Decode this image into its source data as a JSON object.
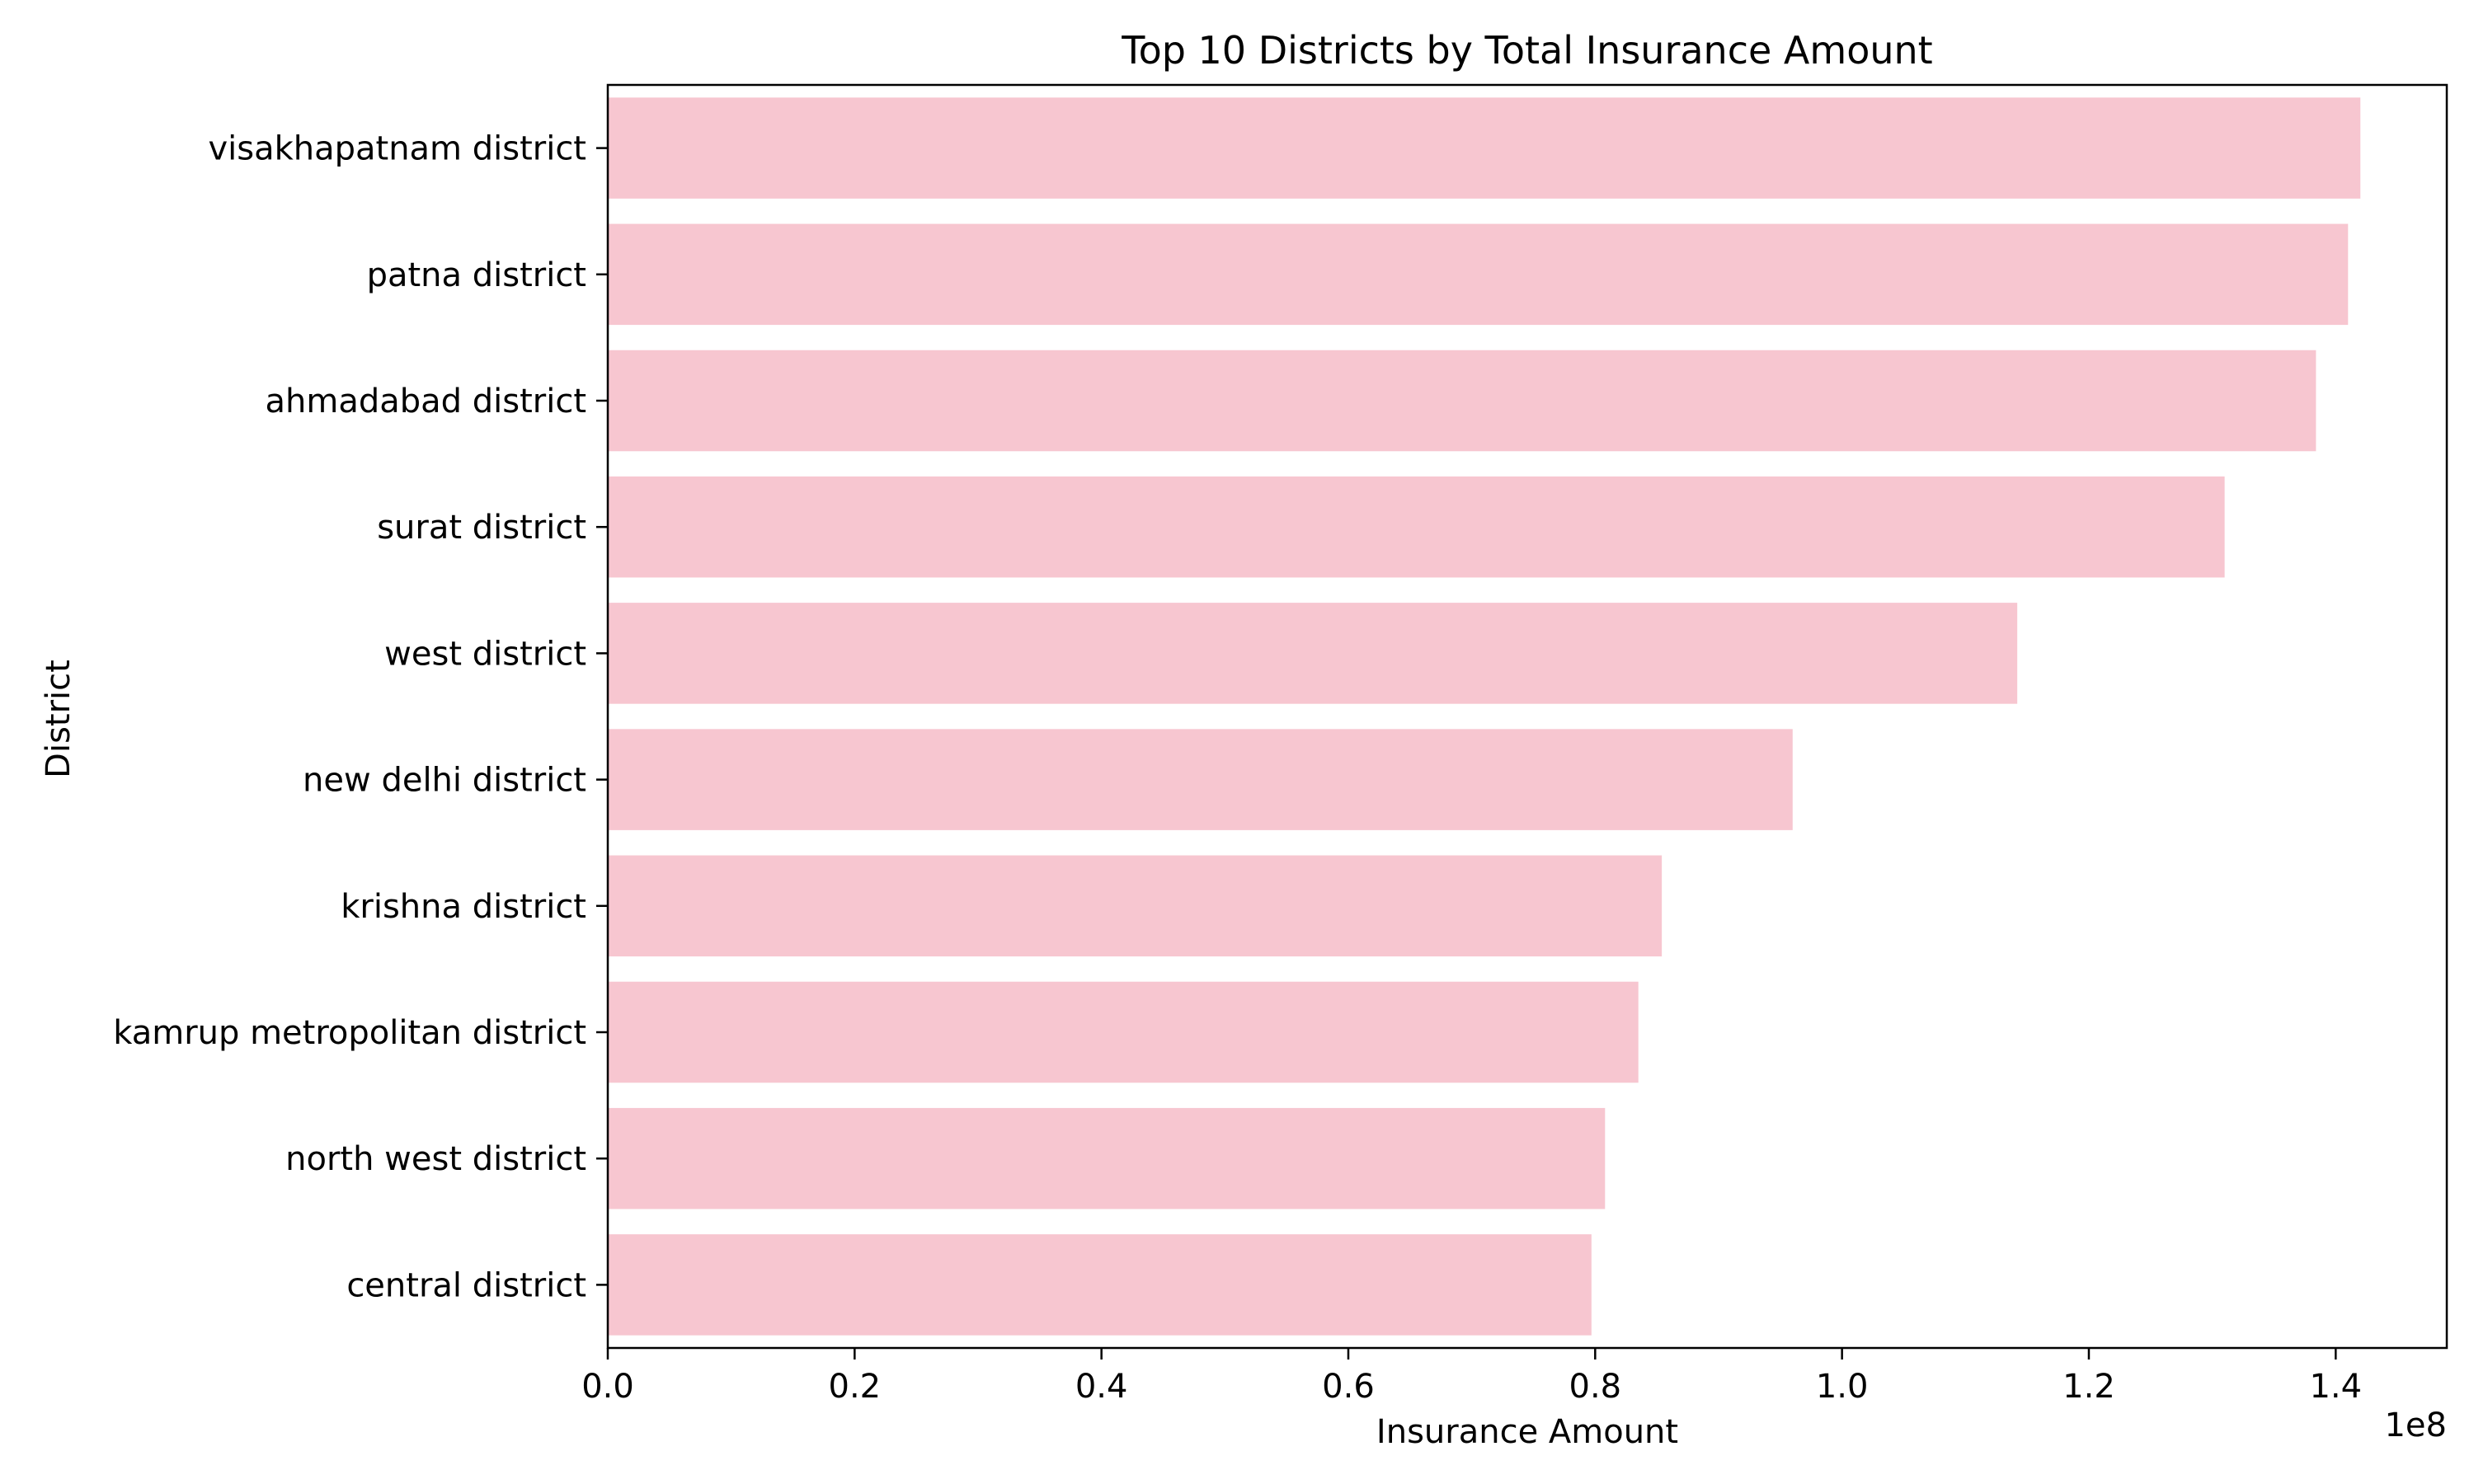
{
  "chart_data": {
    "type": "bar",
    "orientation": "horizontal",
    "title": "Top 10 Districts by Total Insurance Amount",
    "xlabel": "Insurance Amount",
    "ylabel": "District",
    "x_offset_label": "1e8",
    "x_scale": 100000000,
    "xlim": [
      0,
      149000000
    ],
    "xticks": [
      0,
      20000000,
      40000000,
      60000000,
      80000000,
      100000000,
      120000000,
      140000000
    ],
    "xtick_labels": [
      "0.0",
      "0.2",
      "0.4",
      "0.6",
      "0.8",
      "1.0",
      "1.2",
      "1.4"
    ],
    "categories": [
      "visakhapatnam district",
      "patna district",
      "ahmadabad district",
      "surat district",
      "west district",
      "new delhi district",
      "krishna district",
      "kamrup metropolitan district",
      "north west district",
      "central district"
    ],
    "values": [
      142000000,
      141000000,
      138400000,
      131000000,
      114200000,
      96000000,
      85400000,
      83500000,
      80800000,
      79700000
    ],
    "bar_color": "#f7c6d0",
    "grid": false,
    "legend": "none"
  }
}
